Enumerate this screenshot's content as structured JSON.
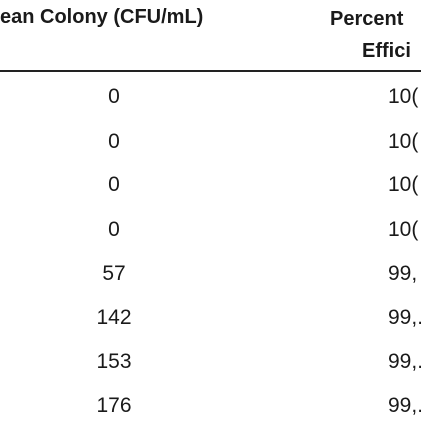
{
  "table": {
    "headers": {
      "col_colony": "ean Colony (CFU/mL)",
      "col_percent_line1": "Percent",
      "col_percent_line2": "Effici"
    },
    "rows": [
      {
        "colony": "0",
        "percent": "10("
      },
      {
        "colony": "0",
        "percent": "10("
      },
      {
        "colony": "0",
        "percent": "10("
      },
      {
        "colony": "0",
        "percent": "10("
      },
      {
        "colony": "57",
        "percent": "99,"
      },
      {
        "colony": "142",
        "percent": "99,."
      },
      {
        "colony": "153",
        "percent": "99,."
      },
      {
        "colony": "176",
        "percent": "99,."
      }
    ]
  }
}
